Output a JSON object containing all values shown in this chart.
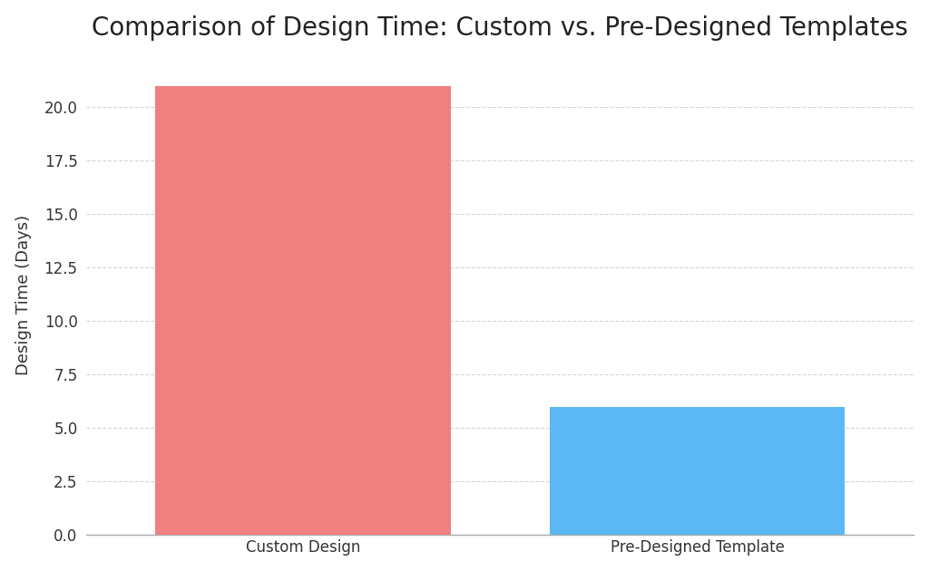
{
  "title": "Comparison of Design Time: Custom vs. Pre-Designed Templates",
  "categories": [
    "Custom Design",
    "Pre-Designed Template"
  ],
  "values": [
    21,
    6
  ],
  "bar_colors": [
    "#F08080",
    "#5BB8F5"
  ],
  "ylabel": "Design Time (Days)",
  "ylim": [
    0,
    22.5
  ],
  "yticks": [
    0.0,
    2.5,
    5.0,
    7.5,
    10.0,
    12.5,
    15.0,
    17.5,
    20.0
  ],
  "title_fontsize": 20,
  "label_fontsize": 13,
  "tick_fontsize": 12,
  "bar_width": 0.75,
  "background_color": "#FFFFFF",
  "grid_color": "#CCCCCC",
  "grid_linestyle": "--",
  "grid_alpha": 0.8,
  "edge_color": "none",
  "xlim": [
    -0.55,
    1.55
  ]
}
